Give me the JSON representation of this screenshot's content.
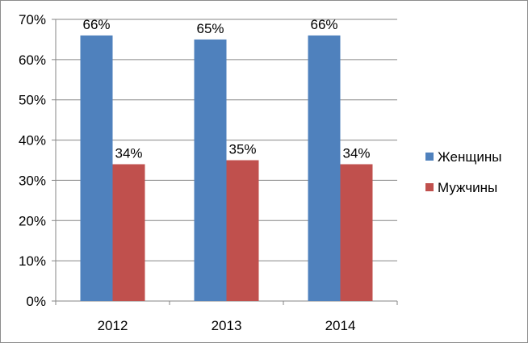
{
  "chart_data": {
    "type": "bar",
    "categories": [
      "2012",
      "2013",
      "2014"
    ],
    "series": [
      {
        "name": "Женщины",
        "values": [
          66,
          65,
          66
        ],
        "labels": [
          "66%",
          "65%",
          "66%"
        ],
        "color": "#4F81BD"
      },
      {
        "name": "Мужчины",
        "values": [
          34,
          35,
          34
        ],
        "labels": [
          "34%",
          "35%",
          "34%"
        ],
        "color": "#C0504D"
      }
    ],
    "ylim": [
      0,
      70
    ],
    "yticks": [
      0,
      10,
      20,
      30,
      40,
      50,
      60,
      70
    ],
    "ytick_labels": [
      "0%",
      "10%",
      "20%",
      "30%",
      "40%",
      "50%",
      "60%",
      "70%"
    ],
    "grid": true,
    "legend_position": "right",
    "title": "",
    "xlabel": "",
    "ylabel": ""
  }
}
